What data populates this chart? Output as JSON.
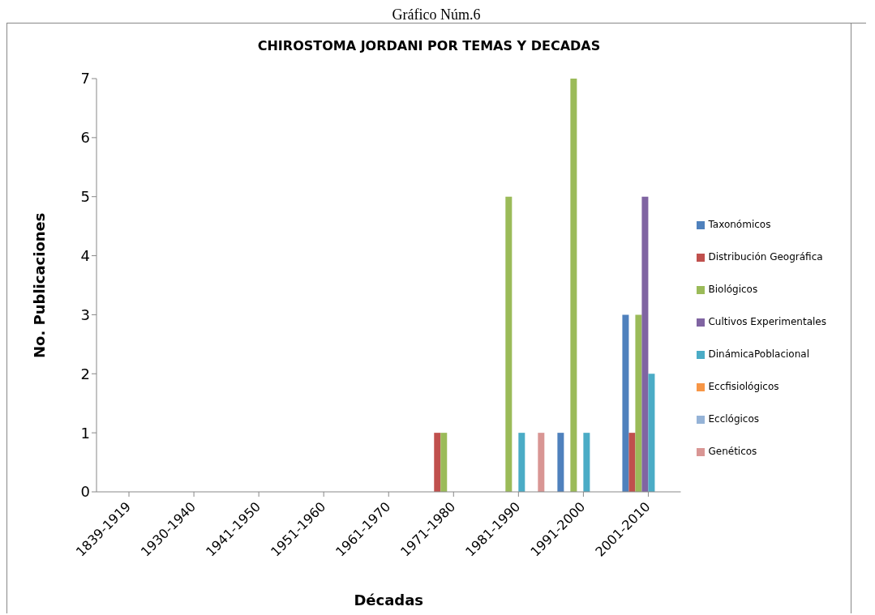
{
  "chart_data": {
    "type": "bar",
    "title": "CHIROSTOMA JORDANI POR TEMAS Y DECADAS",
    "xlabel": "Décadas",
    "ylabel": "No. Publicaciones",
    "annotations": [
      "Gráfico Núm.6"
    ],
    "categories": [
      "1839-1919",
      "1930-1940",
      "1941-1950",
      "1951-1960",
      "1961-1970",
      "1971-1980",
      "1981-1990",
      "1991-2000",
      "2001-2010"
    ],
    "series": [
      {
        "name": "Taxonómicos",
        "color": "#4f81bd",
        "values": [
          0,
          0,
          0,
          0,
          0,
          0,
          0,
          1,
          3
        ]
      },
      {
        "name": "Distribución Geográfica",
        "color": "#c0504d",
        "values": [
          0,
          0,
          0,
          0,
          0,
          1,
          0,
          0,
          1
        ]
      },
      {
        "name": "Biológicos",
        "color": "#9bbb59",
        "values": [
          0,
          0,
          0,
          0,
          0,
          1,
          5,
          7,
          3
        ]
      },
      {
        "name": "Cultivos Experimentales",
        "color": "#8064a2",
        "values": [
          0,
          0,
          0,
          0,
          0,
          0,
          0,
          0,
          5
        ]
      },
      {
        "name": "DinámicaPoblacional",
        "color": "#4bacc6",
        "values": [
          0,
          0,
          0,
          0,
          0,
          0,
          1,
          1,
          2
        ]
      },
      {
        "name": "Eccfisiológicos",
        "color": "#f79646",
        "values": [
          0,
          0,
          0,
          0,
          0,
          0,
          0,
          0,
          0
        ]
      },
      {
        "name": "Ecclógicos",
        "color": "#95b3d7",
        "values": [
          0,
          0,
          0,
          0,
          0,
          0,
          0,
          0,
          0
        ]
      },
      {
        "name": "Genéticos",
        "color": "#d99694",
        "values": [
          0,
          0,
          0,
          0,
          0,
          0,
          1,
          0,
          0
        ]
      }
    ],
    "ylim": [
      0,
      7
    ],
    "yticks": [
      0,
      1,
      2,
      3,
      4,
      5,
      6,
      7
    ],
    "grid": false,
    "legend": "right"
  }
}
